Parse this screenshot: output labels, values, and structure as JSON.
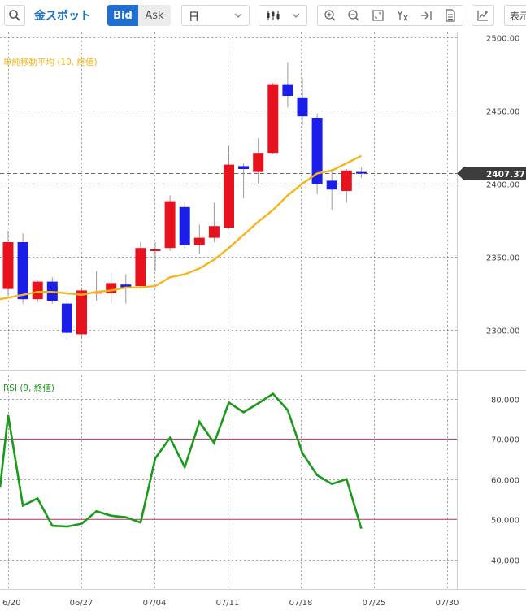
{
  "toolbar": {
    "title": "金スポット",
    "bid_label": "Bid",
    "ask_label": "Ask",
    "period_value": "日",
    "display_label": "表示"
  },
  "main_panel": {
    "indicator_label": "単純移動平均 (10, 終値)",
    "current_price_label": "2407.37",
    "y_ticks": [
      "2500.00",
      "2450.00",
      "2400.00",
      "2350.00",
      "2300.00"
    ]
  },
  "rsi_panel": {
    "indicator_label": "RSI (9, 終値)",
    "y_ticks": [
      "80.000",
      "70.000",
      "60.000",
      "50.000",
      "40.000"
    ]
  },
  "x_ticks": [
    "6/20",
    "06/27",
    "07/04",
    "07/11",
    "07/18",
    "07/25",
    "07/30"
  ],
  "colors": {
    "up": "#e8121e",
    "down": "#1a1ee8",
    "sma": "#f4b41a",
    "rsi": "#1a9a1a",
    "rsi_level": "#b03060",
    "accent": "#1e6fd0"
  },
  "icons": [
    "search-icon",
    "candlestick-icon",
    "zoom-in-icon",
    "zoom-out-icon",
    "fit-icon",
    "crosshair-icon",
    "jump-to-latest-icon",
    "document-icon",
    "indicator-icon"
  ],
  "chart_data": [
    {
      "type": "candlestick",
      "ylim": [
        2275,
        2505
      ],
      "current_price": 2407.37,
      "candles": [
        {
          "date": "06/20",
          "open": 2328,
          "high": 2368,
          "low": 2323,
          "close": 2360
        },
        {
          "date": "06/21",
          "open": 2360,
          "high": 2366,
          "low": 2318,
          "close": 2321
        },
        {
          "date": "06/24",
          "open": 2321,
          "high": 2334,
          "low": 2319,
          "close": 2333
        },
        {
          "date": "06/25",
          "open": 2333,
          "high": 2336,
          "low": 2318,
          "close": 2320
        },
        {
          "date": "06/26",
          "open": 2318,
          "high": 2321,
          "low": 2294,
          "close": 2298
        },
        {
          "date": "06/27",
          "open": 2297,
          "high": 2329,
          "low": 2295,
          "close": 2327
        },
        {
          "date": "06/28",
          "open": 2326,
          "high": 2340,
          "low": 2320,
          "close": 2326
        },
        {
          "date": "07/01",
          "open": 2325,
          "high": 2339,
          "low": 2318,
          "close": 2332
        },
        {
          "date": "07/02",
          "open": 2331,
          "high": 2338,
          "low": 2318,
          "close": 2329
        },
        {
          "date": "07/03",
          "open": 2330,
          "high": 2360,
          "low": 2328,
          "close": 2356
        },
        {
          "date": "07/04",
          "open": 2355,
          "high": 2360,
          "low": 2340,
          "close": 2355
        },
        {
          "date": "07/05",
          "open": 2356,
          "high": 2392,
          "low": 2354,
          "close": 2388
        },
        {
          "date": "07/08",
          "open": 2384,
          "high": 2387,
          "low": 2356,
          "close": 2358
        },
        {
          "date": "07/09",
          "open": 2358,
          "high": 2372,
          "low": 2352,
          "close": 2363
        },
        {
          "date": "07/10",
          "open": 2363,
          "high": 2387,
          "low": 2360,
          "close": 2371
        },
        {
          "date": "07/11",
          "open": 2370,
          "high": 2426,
          "low": 2369,
          "close": 2413
        },
        {
          "date": "07/12",
          "open": 2412,
          "high": 2414,
          "low": 2390,
          "close": 2410
        },
        {
          "date": "07/15",
          "open": 2408,
          "high": 2431,
          "low": 2400,
          "close": 2421
        },
        {
          "date": "07/16",
          "open": 2421,
          "high": 2469,
          "low": 2420,
          "close": 2468
        },
        {
          "date": "07/17",
          "open": 2468,
          "high": 2483,
          "low": 2452,
          "close": 2460
        },
        {
          "date": "07/18",
          "open": 2459,
          "high": 2472,
          "low": 2440,
          "close": 2446
        },
        {
          "date": "07/19",
          "open": 2445,
          "high": 2448,
          "low": 2393,
          "close": 2400
        },
        {
          "date": "07/22",
          "open": 2402,
          "high": 2410,
          "low": 2382,
          "close": 2396
        },
        {
          "date": "07/23",
          "open": 2395,
          "high": 2410,
          "low": 2387,
          "close": 2409
        },
        {
          "date": "07/24",
          "open": 2408,
          "high": 2411,
          "low": 2404,
          "close": 2407
        }
      ],
      "sma": {
        "name": "単純移動平均 (10, 終値)",
        "x": [
          "06/20",
          "06/21",
          "06/24",
          "06/25",
          "06/26",
          "06/27",
          "06/28",
          "07/01",
          "07/02",
          "07/03",
          "07/04",
          "07/05",
          "07/08",
          "07/09",
          "07/10",
          "07/11",
          "07/12",
          "07/15",
          "07/16",
          "07/17",
          "07/18",
          "07/19",
          "07/22",
          "07/23",
          "07/24"
        ],
        "values": [
          2321,
          2324,
          2326,
          2326,
          2325,
          2324,
          2326,
          2327,
          2329,
          2329,
          2330,
          2336,
          2338,
          2342,
          2348,
          2356,
          2365,
          2374,
          2382,
          2392,
          2400,
          2407,
          2409,
          2414,
          2419
        ]
      }
    },
    {
      "type": "line",
      "name": "RSI (9, 終値)",
      "ylim": [
        35,
        87
      ],
      "levels": [
        70,
        50
      ],
      "x": [
        "06/19",
        "06/20",
        "06/21",
        "06/24",
        "06/25",
        "06/26",
        "06/27",
        "06/28",
        "07/01",
        "07/02",
        "07/03",
        "07/04",
        "07/05",
        "07/08",
        "07/09",
        "07/10",
        "07/11",
        "07/12",
        "07/15",
        "07/16",
        "07/17",
        "07/18",
        "07/19",
        "07/22",
        "07/23",
        "07/24"
      ],
      "values": [
        57.9,
        76.0,
        53.4,
        55.2,
        48.4,
        48.2,
        48.9,
        52.0,
        50.9,
        50.5,
        49.2,
        65.2,
        70.3,
        63.0,
        74.3,
        69.0,
        79.1,
        76.7,
        78.9,
        81.3,
        77.2,
        66.5,
        61.0,
        58.8,
        60.0,
        47.7
      ]
    }
  ]
}
